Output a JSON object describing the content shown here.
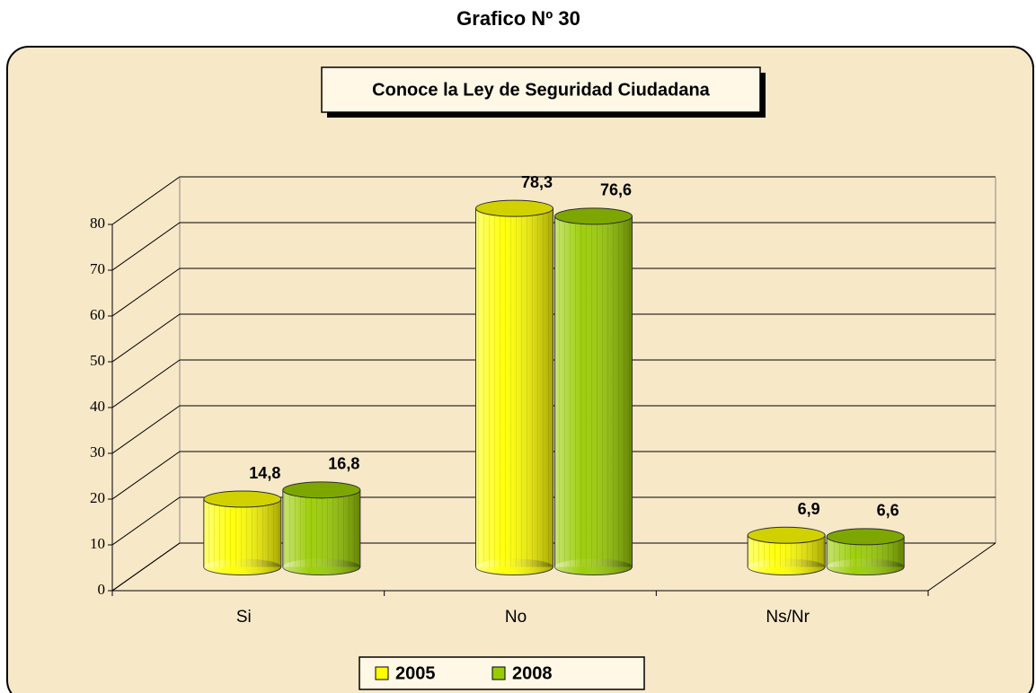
{
  "chart_data": {
    "type": "bar3d",
    "heading": "Grafico Nº 30",
    "title": "Conoce la Ley de Seguridad Ciudadana",
    "categories": [
      "Si",
      "No",
      "Ns/Nr"
    ],
    "series": [
      {
        "name": "2005",
        "color": "#ffff00",
        "values": [
          14.8,
          78.3,
          6.9
        ],
        "value_labels": [
          "14,8",
          "78,3",
          "6,9"
        ]
      },
      {
        "name": "2008",
        "color": "#99cc00",
        "values": [
          16.8,
          76.6,
          6.6
        ],
        "value_labels": [
          "16,8",
          "76,6",
          "6,6"
        ]
      }
    ],
    "ylim": [
      0,
      80
    ],
    "yticks": [
      0,
      10,
      20,
      30,
      40,
      50,
      60,
      70,
      80
    ],
    "grid": true,
    "legend": "bottom"
  }
}
